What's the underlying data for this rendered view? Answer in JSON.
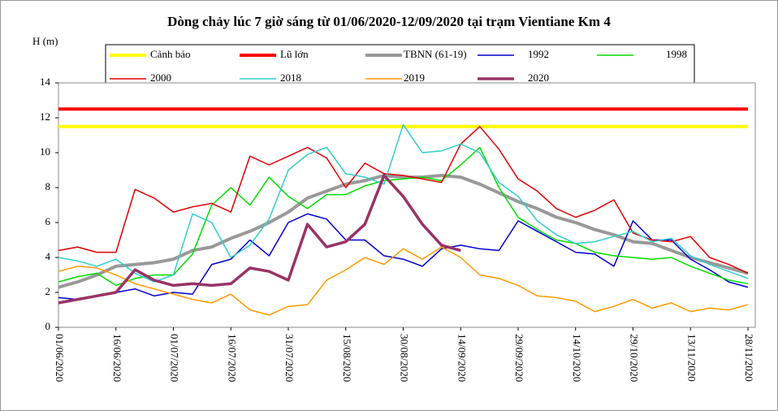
{
  "chart_data": {
    "type": "line",
    "title": "Dòng chảy lúc 7 giờ sáng từ 01/06/2020-12/09/2020 tại trạm Vientiane Km 4",
    "y_label": "H (m)",
    "categories": [
      "01/06/2020",
      null,
      null,
      "16/06/2020",
      null,
      null,
      "01/07/2020",
      null,
      null,
      "16/07/2020",
      null,
      null,
      "31/07/2020",
      null,
      null,
      "15/08/2020",
      null,
      null,
      "30/08/2020",
      null,
      null,
      "14/09/2020",
      null,
      null,
      "29/09/2020",
      null,
      null,
      "14/10/2020",
      null,
      null,
      "29/10/2020",
      null,
      null,
      "13/11/2020",
      null,
      null,
      "28/11/2020"
    ],
    "ylim": [
      0,
      14
    ],
    "yticks": [
      0,
      2,
      4,
      6,
      8,
      10,
      12,
      14
    ],
    "series": [
      {
        "name": "Cảnh báo",
        "color": "#ffff00",
        "line_width": 4,
        "values": [
          11.5,
          11.5,
          11.5,
          11.5,
          11.5,
          11.5,
          11.5,
          11.5,
          11.5,
          11.5,
          11.5,
          11.5,
          11.5,
          11.5,
          11.5,
          11.5,
          11.5,
          11.5,
          11.5,
          11.5,
          11.5,
          11.5,
          11.5,
          11.5,
          11.5,
          11.5,
          11.5,
          11.5,
          11.5,
          11.5,
          11.5,
          11.5,
          11.5,
          11.5,
          11.5,
          11.5,
          11.5
        ]
      },
      {
        "name": "Lũ lớn",
        "color": "#ff0000",
        "line_width": 4,
        "values": [
          12.5,
          12.5,
          12.5,
          12.5,
          12.5,
          12.5,
          12.5,
          12.5,
          12.5,
          12.5,
          12.5,
          12.5,
          12.5,
          12.5,
          12.5,
          12.5,
          12.5,
          12.5,
          12.5,
          12.5,
          12.5,
          12.5,
          12.5,
          12.5,
          12.5,
          12.5,
          12.5,
          12.5,
          12.5,
          12.5,
          12.5,
          12.5,
          12.5,
          12.5,
          12.5,
          12.5,
          12.5
        ]
      },
      {
        "name": "TBNN (61-19)",
        "color": "#999999",
        "line_width": 4,
        "values": [
          2.3,
          2.6,
          3.0,
          3.5,
          3.6,
          3.7,
          3.9,
          4.4,
          4.6,
          5.1,
          5.5,
          6.0,
          6.6,
          7.4,
          7.8,
          8.2,
          8.4,
          8.7,
          8.6,
          8.6,
          8.7,
          8.6,
          8.2,
          7.7,
          7.2,
          6.8,
          6.3,
          6.0,
          5.6,
          5.3,
          4.9,
          4.8,
          4.4,
          4.0,
          3.7,
          3.4,
          3.1
        ]
      },
      {
        "name": "1992",
        "color": "#0000cc",
        "line_width": 1.5,
        "values": [
          1.7,
          1.6,
          1.8,
          2.0,
          2.2,
          1.8,
          2.0,
          1.9,
          3.6,
          3.9,
          5.0,
          4.1,
          6.0,
          6.5,
          6.2,
          5.0,
          5.0,
          4.1,
          3.9,
          3.5,
          4.5,
          4.7,
          4.5,
          4.4,
          6.1,
          5.5,
          4.9,
          4.3,
          4.2,
          3.5,
          6.1,
          5.0,
          5.0,
          3.9,
          3.3,
          2.6,
          2.3
        ]
      },
      {
        "name": "1998",
        "color": "#00dd00",
        "line_width": 1.5,
        "values": [
          2.6,
          2.9,
          3.1,
          2.4,
          2.8,
          3.0,
          3.0,
          4.2,
          7.0,
          8.0,
          7.0,
          8.6,
          7.5,
          6.8,
          7.6,
          7.6,
          8.1,
          8.4,
          8.5,
          8.6,
          8.4,
          9.3,
          10.3,
          8.0,
          6.3,
          5.6,
          5.0,
          4.8,
          4.3,
          4.1,
          4.0,
          3.9,
          4.0,
          3.5,
          3.1,
          2.7,
          2.5
        ]
      },
      {
        "name": "2000",
        "color": "#e00000",
        "line_width": 1.5,
        "values": [
          4.4,
          4.6,
          4.3,
          4.3,
          7.9,
          7.4,
          6.6,
          6.9,
          7.1,
          6.6,
          9.8,
          9.3,
          9.8,
          10.3,
          9.7,
          8.0,
          9.4,
          8.8,
          8.7,
          8.5,
          8.3,
          10.5,
          11.5,
          10.2,
          8.5,
          7.8,
          6.8,
          6.3,
          6.7,
          7.3,
          5.4,
          5.0,
          4.9,
          5.2,
          4.0,
          3.6,
          3.1
        ]
      },
      {
        "name": "2018",
        "color": "#33cccc",
        "line_width": 1.5,
        "values": [
          4.0,
          3.8,
          3.5,
          3.9,
          3.1,
          2.6,
          3.0,
          6.5,
          6.0,
          4.0,
          4.7,
          6.2,
          9.0,
          9.9,
          10.3,
          8.8,
          8.6,
          8.2,
          11.6,
          10.0,
          10.1,
          10.5,
          10.0,
          8.3,
          7.5,
          6.1,
          5.3,
          4.8,
          4.9,
          5.2,
          5.5,
          4.9,
          5.1,
          4.1,
          3.6,
          3.2,
          2.8
        ]
      },
      {
        "name": "2019",
        "color": "#ff9900",
        "line_width": 1.5,
        "values": [
          3.2,
          3.5,
          3.4,
          3.0,
          2.5,
          2.2,
          1.9,
          1.6,
          1.4,
          1.9,
          1.0,
          0.7,
          1.2,
          1.3,
          2.7,
          3.3,
          4.0,
          3.6,
          4.5,
          3.9,
          4.6,
          4.0,
          3.0,
          2.8,
          2.4,
          1.8,
          1.7,
          1.5,
          0.9,
          1.2,
          1.6,
          1.1,
          1.4,
          0.9,
          1.1,
          1.0,
          1.3
        ]
      },
      {
        "name": "2020",
        "color": "#993366",
        "line_width": 3.5,
        "values": [
          1.4,
          1.6,
          1.8,
          2.0,
          3.3,
          2.7,
          2.4,
          2.5,
          2.4,
          2.5,
          3.4,
          3.2,
          2.7,
          5.9,
          4.6,
          4.9,
          5.9,
          8.7,
          7.5,
          5.9,
          4.7,
          4.4,
          null,
          null,
          null,
          null,
          null,
          null,
          null,
          null,
          null,
          null,
          null,
          null,
          null,
          null,
          null
        ]
      }
    ]
  }
}
